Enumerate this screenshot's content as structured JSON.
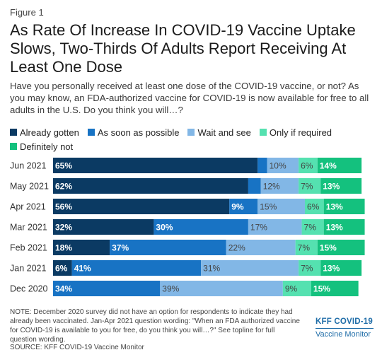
{
  "figure_label": "Figure 1",
  "title": "As Rate Of Increase In COVID-19 Vaccine Uptake Slows, Two-Thirds Of Adults Report Receiving At Least One Dose",
  "subtitle": "Have you personally received at least one dose of the COVID-19 vaccine, or not? As you may know, an FDA-authorized vaccine for COVID-19 is now available for free to all adults in the U.S. Do you think you will…?",
  "legend": [
    {
      "label": "Already gotten",
      "color": "#0b3a63"
    },
    {
      "label": "As soon as possible",
      "color": "#1873c4"
    },
    {
      "label": "Wait and see",
      "color": "#82b7e6"
    },
    {
      "label": "Only if required",
      "color": "#55e1b0"
    },
    {
      "label": "Definitely not",
      "color": "#14c17e"
    }
  ],
  "chart_data": {
    "type": "bar",
    "orientation": "horizontal",
    "stacked": true,
    "categories": [
      "Jun 2021",
      "May 2021",
      "Apr 2021",
      "Mar 2021",
      "Feb 2021",
      "Jan 2021",
      "Dec 2020"
    ],
    "series": [
      {
        "name": "Already gotten",
        "values": [
          65,
          62,
          56,
          32,
          18,
          6,
          0
        ],
        "labels": [
          "65%",
          "62%",
          "56%",
          "32%",
          "18%",
          "6%",
          ""
        ]
      },
      {
        "name": "As soon as possible",
        "values": [
          3,
          4,
          9,
          30,
          37,
          41,
          34
        ],
        "labels": [
          "",
          "",
          "9%",
          "30%",
          "37%",
          "41%",
          "34%"
        ]
      },
      {
        "name": "Wait and see",
        "values": [
          10,
          12,
          15,
          17,
          22,
          31,
          39
        ],
        "labels": [
          "10%",
          "12%",
          "15%",
          "17%",
          "22%",
          "31%",
          "39%"
        ]
      },
      {
        "name": "Only if required",
        "values": [
          6,
          7,
          6,
          7,
          7,
          7,
          9
        ],
        "labels": [
          "6%",
          "7%",
          "6%",
          "7%",
          "7%",
          "7%",
          "9%"
        ]
      },
      {
        "name": "Definitely not",
        "values": [
          14,
          13,
          13,
          13,
          15,
          13,
          15
        ],
        "labels": [
          "14%",
          "13%",
          "13%",
          "13%",
          "15%",
          "13%",
          "15%"
        ]
      }
    ],
    "xlim": [
      0,
      100
    ],
    "grid": false,
    "legend_position": "top-left"
  },
  "note": "NOTE: December 2020 survey did not have an option for respondents to indicate they had already been vaccinated. Jan-Apr 2021 question wording: \"When an FDA authorized vaccine for COVID-19 is available to you for free, do you think you will…?\" See topline for full question wording.",
  "source": "SOURCE: KFF COVID-19 Vaccine Monitor",
  "logo": {
    "line1": "KFF COVID-19",
    "line2": "Vaccine Monitor"
  }
}
